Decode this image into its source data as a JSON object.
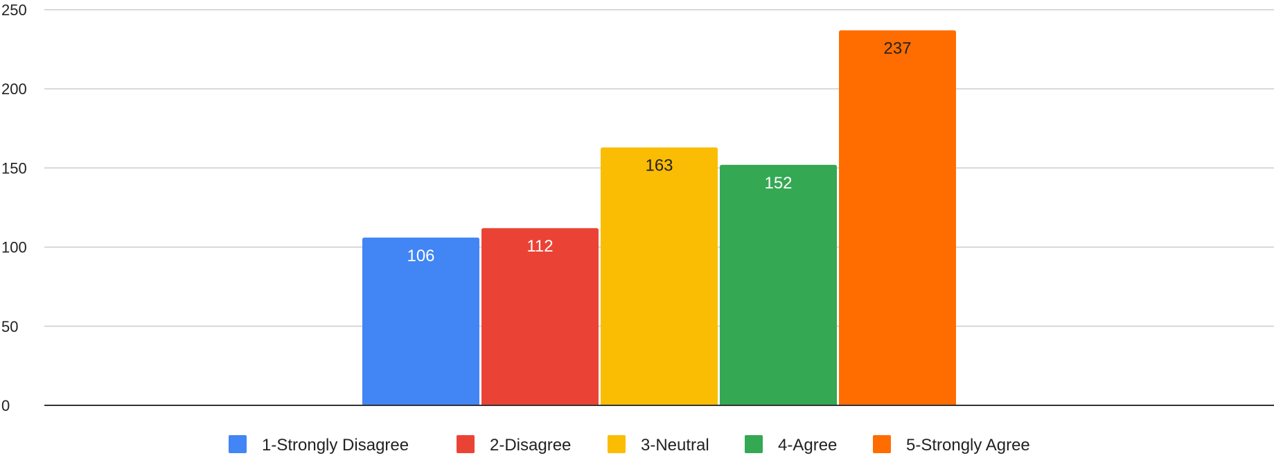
{
  "chart_data": {
    "type": "bar",
    "categories": [
      ""
    ],
    "series": [
      {
        "name": "1-Strongly Disagree",
        "values": [
          106
        ],
        "color": "#4285F4",
        "label_color": "#ffffff"
      },
      {
        "name": "2-Disagree",
        "values": [
          112
        ],
        "color": "#EA4335",
        "label_color": "#ffffff"
      },
      {
        "name": "3-Neutral",
        "values": [
          163
        ],
        "color": "#FBBC04",
        "label_color": "#222222"
      },
      {
        "name": "4-Agree",
        "values": [
          152
        ],
        "color": "#34A853",
        "label_color": "#ffffff"
      },
      {
        "name": "5-Strongly Agree",
        "values": [
          237
        ],
        "color": "#FF6D01",
        "label_color": "#222222"
      }
    ],
    "y_ticks": [
      "0",
      "50",
      "100",
      "150",
      "200",
      "250"
    ],
    "ylim": [
      0,
      250
    ],
    "data_labels": [
      "106",
      "112",
      "163",
      "152",
      "237"
    ],
    "legend_position": "bottom",
    "grid": true,
    "gridline_color": "#CCCCCC",
    "axis_color": "#333333"
  }
}
